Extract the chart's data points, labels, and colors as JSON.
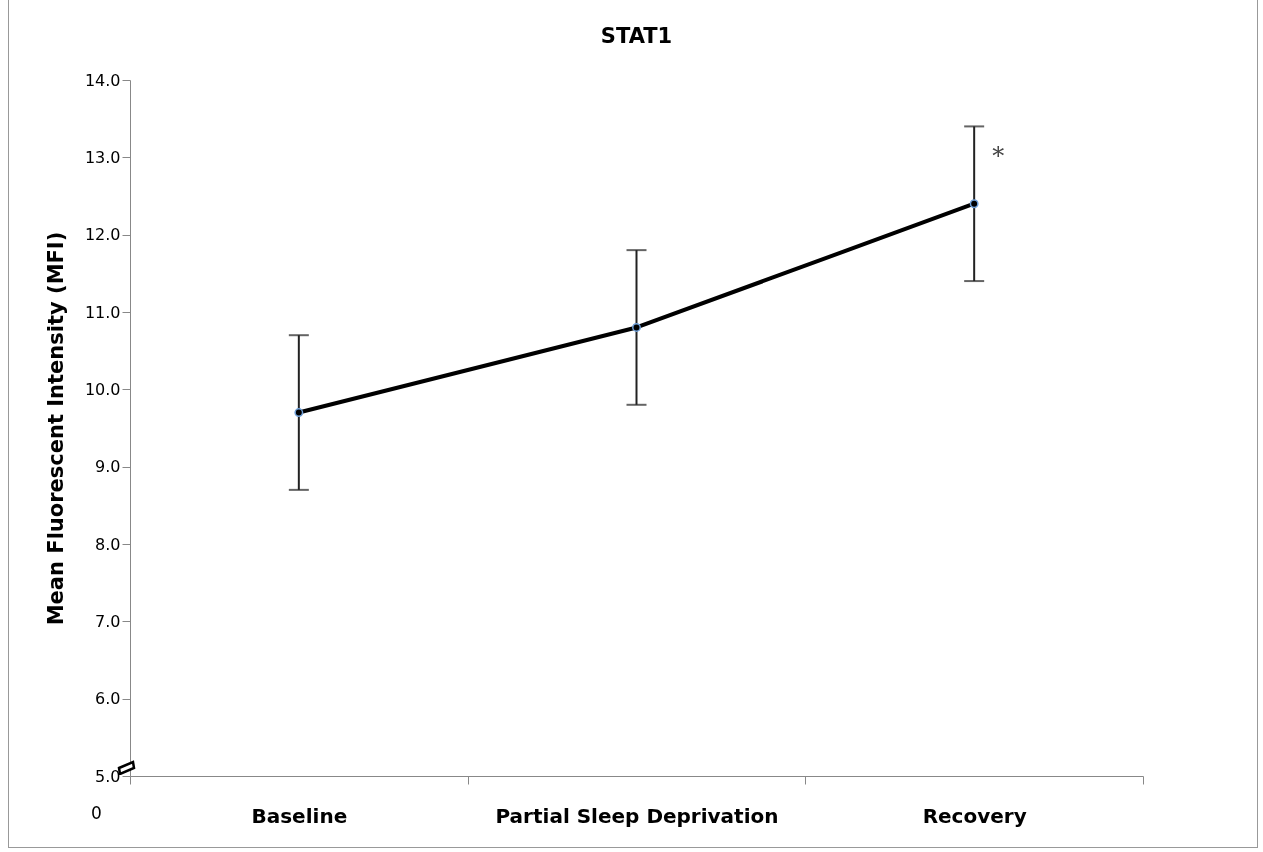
{
  "chart_data": {
    "type": "line",
    "title": "STAT1",
    "ylabel": "Mean Fluorescent Intensity (MFI)",
    "categories": [
      "Baseline",
      "Partial Sleep Deprivation",
      "Recovery"
    ],
    "series": [
      {
        "color": "#000000",
        "values": [
          9.7,
          10.8,
          12.4
        ],
        "errors": [
          1.0,
          1.0,
          1.0
        ]
      }
    ],
    "ylim": [
      5,
      14
    ],
    "yticks": [
      {
        "value": 5,
        "label": "5.0"
      },
      {
        "value": 6,
        "label": "6.0"
      },
      {
        "value": 7,
        "label": "7.0"
      },
      {
        "value": 8,
        "label": "8.0"
      },
      {
        "value": 9,
        "label": "9.0"
      },
      {
        "value": 10,
        "label": "10.0"
      },
      {
        "value": 11,
        "label": "11.0"
      },
      {
        "value": 12,
        "label": "12.0"
      },
      {
        "value": 13,
        "label": "13.0"
      },
      {
        "value": 14,
        "label": "14.0"
      }
    ],
    "annotations": [
      {
        "text": "*",
        "x": "Recovery",
        "y": 13.0
      },
      "0"
    ],
    "grid": false,
    "marker": "circle",
    "line_style": "solid"
  }
}
